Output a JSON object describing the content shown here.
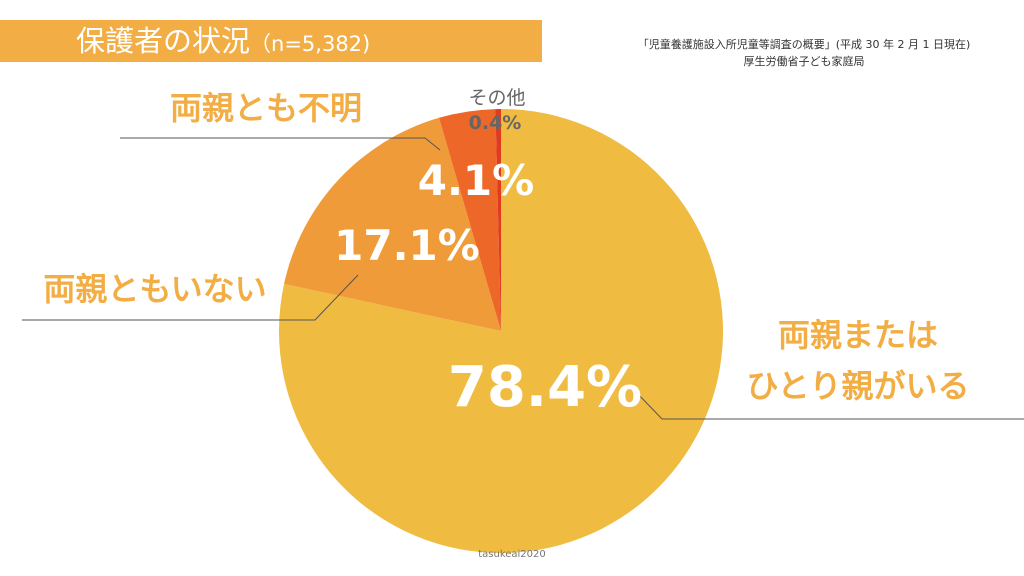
{
  "title": {
    "main": "保護者の状況",
    "sample": "（n=5,382)"
  },
  "source": {
    "line1": "「児童養護施設入所児童等調査の概要」(平成 30 年 2 月 1 日現在)",
    "line2": "厚生労働省子ども家庭局"
  },
  "credit": "tasukeai2020",
  "chart_data": {
    "type": "pie",
    "slices": [
      {
        "label": "両親またはひとり親がいる",
        "label_lines": [
          "両親または",
          "ひとり親がいる"
        ],
        "value": 78.4,
        "value_label": "78.4%",
        "color": "#EFBB41",
        "label_color": "#F2AE45"
      },
      {
        "label": "両親ともいない",
        "label_lines": [
          "両親ともいない"
        ],
        "value": 17.1,
        "value_label": "17.1%",
        "color": "#F09B39",
        "label_color": "#F2AE45"
      },
      {
        "label": "両親とも不明",
        "label_lines": [
          "両親とも不明"
        ],
        "value": 4.1,
        "value_label": "4.1%",
        "color": "#EC6728",
        "label_color": "#F2AE45"
      },
      {
        "label": "その他",
        "label_lines": [
          "その他"
        ],
        "value": 0.4,
        "value_label": "0.4%",
        "color": "#E23A1E",
        "label_color": "#666666"
      }
    ],
    "start": "12 o'clock",
    "direction": "clockwise"
  }
}
